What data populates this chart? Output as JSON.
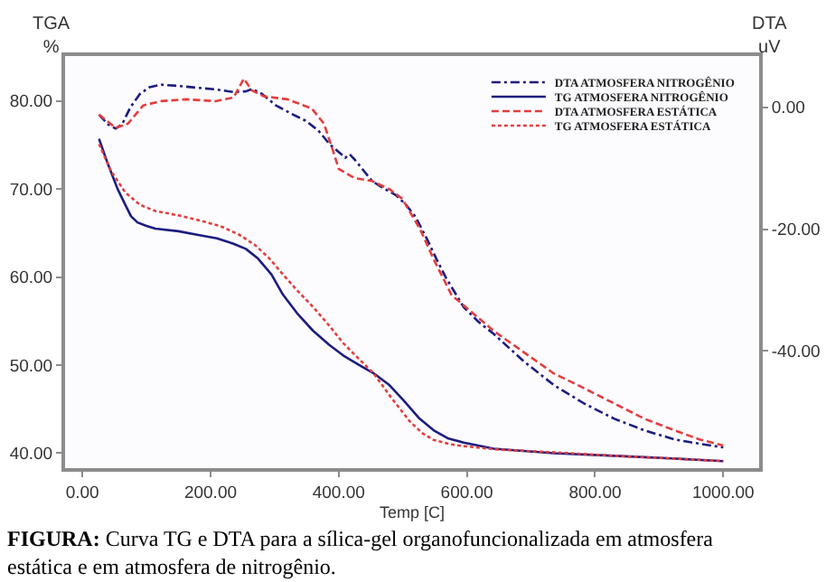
{
  "chart_data": {
    "type": "line",
    "xlabel": "Temp [C]",
    "ylabel": "TGA\n%",
    "y2label": "DTA\nuV",
    "annotations": [
      "FIGURA: Curva TG e DTA para a sílica-gel organofuncionalizada em atmosfera\nestática e em atmosfera de nitrogênio."
    ],
    "xlim": [
      -27,
      1056
    ],
    "xticks": [
      {
        "value": 0,
        "label": "0.00"
      },
      {
        "value": 200,
        "label": "200.00"
      },
      {
        "value": 400,
        "label": "400.00"
      },
      {
        "value": 600,
        "label": "600.00"
      },
      {
        "value": 800,
        "label": "800.00"
      },
      {
        "value": 1000,
        "label": "1000.00"
      }
    ],
    "ylim": [
      38.3,
      85.1
    ],
    "yticks": [
      {
        "value": 40,
        "label": "40.00"
      },
      {
        "value": 50,
        "label": "50.00"
      },
      {
        "value": 60,
        "label": "60.00"
      },
      {
        "value": 70,
        "label": "70.00"
      },
      {
        "value": 80,
        "label": "80.00"
      }
    ],
    "y2lim": [
      -59.2,
      8.4
    ],
    "y2ticks": [
      {
        "value": -40,
        "label": "-40.00"
      },
      {
        "value": -20,
        "label": "-20.00"
      },
      {
        "value": 0,
        "label": "0.00"
      }
    ],
    "legend": "top right",
    "series": [
      {
        "name": "DTA ATMOSFERA NITROGÊNIO",
        "color": "#1c1c80",
        "line_style": "dashdot",
        "axis": "y2",
        "x": [
          26,
          40,
          52,
          62,
          75,
          90,
          105,
          123,
          150,
          179,
          210,
          235,
          255,
          265,
          280,
          302,
          325,
          348,
          368,
          386,
          403,
          410,
          417,
          425,
          452,
          470,
          489,
          505,
          520,
          539,
          553,
          567,
          595,
          618,
          642,
          689,
          736,
          783,
          830,
          877,
          924,
          963,
          1000
        ],
        "values": [
          -1.2,
          -2.8,
          -3.5,
          -2.8,
          0.0,
          2.2,
          3.3,
          3.7,
          3.5,
          3.2,
          2.9,
          2.5,
          2.6,
          3.0,
          2.2,
          0.3,
          -1.0,
          -2.2,
          -3.8,
          -6.1,
          -7.6,
          -8.3,
          -7.7,
          -8.6,
          -12.1,
          -13.3,
          -14.4,
          -16.0,
          -18.0,
          -21.9,
          -25.0,
          -27.9,
          -32.8,
          -35.2,
          -37.2,
          -41.7,
          -45.6,
          -48.6,
          -51.1,
          -53.0,
          -54.5,
          -55.2,
          -55.8
        ]
      },
      {
        "name": "TG ATMOSFERA NITROGÊNIO",
        "color": "#1c1c80",
        "line_style": "solid",
        "x": [
          26,
          40,
          55,
          67,
          76,
          86,
          100,
          114,
          150,
          179,
          210,
          235,
          255,
          274,
          295,
          313,
          335,
          360,
          385,
          407,
          430,
          454,
          478,
          501,
          525,
          548,
          570,
          595,
          642,
          736,
          830,
          920,
          1000
        ],
        "values": [
          75.7,
          72.8,
          70.0,
          68.2,
          66.9,
          66.2,
          65.8,
          65.5,
          65.2,
          64.8,
          64.4,
          63.8,
          63.2,
          62.1,
          60.3,
          58.0,
          55.9,
          53.9,
          52.3,
          51.1,
          50.1,
          49.1,
          47.8,
          46.0,
          44.0,
          42.6,
          41.7,
          41.2,
          40.5,
          40.0,
          39.7,
          39.4,
          39.1
        ]
      },
      {
        "name": "DTA ATMOSFERA ESTÁTICA",
        "color": "#e43d3d",
        "line_style": "dashed",
        "axis": "y2",
        "x": [
          26,
          52,
          71,
          95,
          123,
          161,
          208,
          236,
          252,
          264,
          283,
          320,
          358,
          377,
          391,
          400,
          424,
          452,
          480,
          499,
          527,
          548,
          576,
          604,
          642,
          689,
          736,
          783,
          830,
          877,
          924,
          963,
          1000
        ],
        "values": [
          -1.2,
          -3.4,
          -2.7,
          0.3,
          1.0,
          1.3,
          1.0,
          1.6,
          4.7,
          2.8,
          1.8,
          1.3,
          -0.2,
          -2.7,
          -7.1,
          -10.1,
          -11.6,
          -12.1,
          -13.5,
          -15.0,
          -20.0,
          -24.9,
          -30.8,
          -33.3,
          -36.7,
          -40.2,
          -43.7,
          -46.1,
          -48.6,
          -51.1,
          -53.0,
          -54.5,
          -55.5
        ]
      },
      {
        "name": "TG ATMOSFERA ESTÁTICA",
        "color": "#e43d3d",
        "line_style": "dotted",
        "x": [
          26,
          45,
          67,
          90,
          114,
          150,
          179,
          215,
          245,
          270,
          292,
          313,
          335,
          360,
          385,
          407,
          430,
          454,
          482,
          511,
          530,
          548,
          575,
          595,
          650,
          736,
          830,
          1000
        ],
        "values": [
          75.1,
          72.0,
          69.6,
          68.2,
          67.5,
          67.0,
          66.5,
          65.8,
          64.8,
          63.6,
          62.1,
          60.3,
          58.5,
          56.6,
          54.5,
          52.5,
          50.8,
          49.1,
          46.3,
          43.6,
          42.3,
          41.5,
          41.0,
          40.8,
          40.4,
          40.1,
          39.7,
          39.1
        ]
      }
    ]
  }
}
